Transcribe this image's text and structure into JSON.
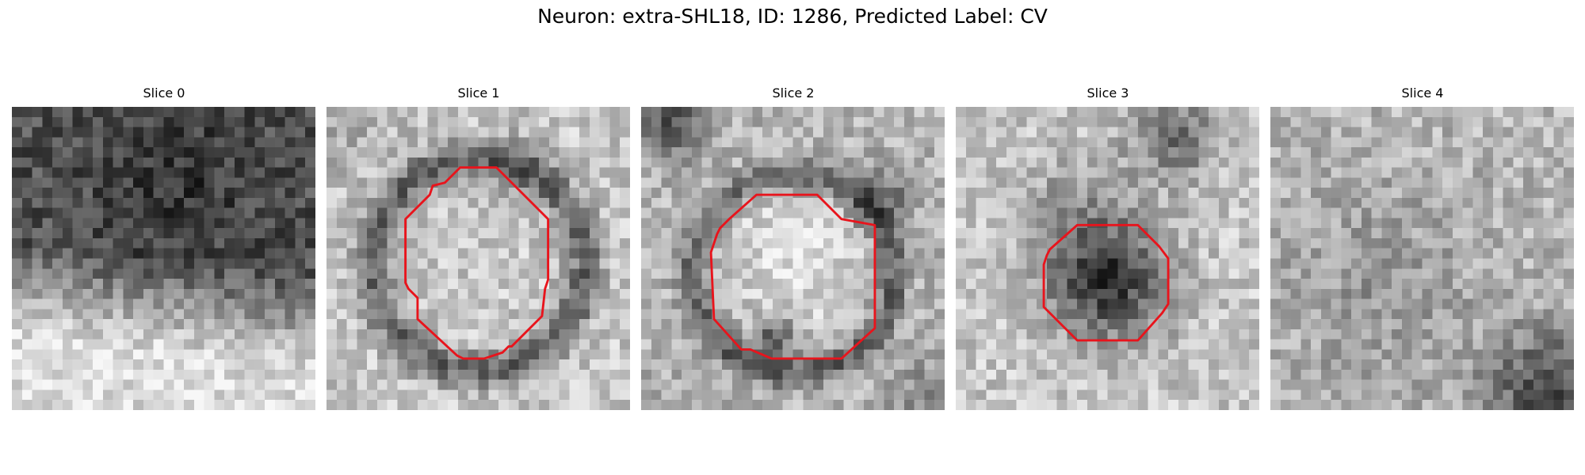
{
  "figure": {
    "title": "Neuron: extra-SHL18, ID: 1286, Predicted Label: CV"
  },
  "contour_color": "#e8141c",
  "panels": [
    {
      "title": "Slice 0",
      "seed": 11,
      "base": "slice0",
      "contour": null
    },
    {
      "title": "Slice 1",
      "seed": 23,
      "base": "slice1",
      "contour": [
        [
          0.44,
          0.2
        ],
        [
          0.56,
          0.2
        ],
        [
          0.61,
          0.25
        ],
        [
          0.73,
          0.37
        ],
        [
          0.73,
          0.57
        ],
        [
          0.72,
          0.6
        ],
        [
          0.71,
          0.69
        ],
        [
          0.61,
          0.79
        ],
        [
          0.6,
          0.79
        ],
        [
          0.58,
          0.81
        ],
        [
          0.52,
          0.83
        ],
        [
          0.45,
          0.83
        ],
        [
          0.43,
          0.82
        ],
        [
          0.3,
          0.7
        ],
        [
          0.3,
          0.63
        ],
        [
          0.27,
          0.6
        ],
        [
          0.26,
          0.58
        ],
        [
          0.26,
          0.37
        ],
        [
          0.34,
          0.29
        ],
        [
          0.35,
          0.26
        ],
        [
          0.39,
          0.25
        ]
      ]
    },
    {
      "title": "Slice 2",
      "seed": 37,
      "base": "slice2",
      "contour": [
        [
          0.38,
          0.29
        ],
        [
          0.58,
          0.29
        ],
        [
          0.66,
          0.37
        ],
        [
          0.77,
          0.39
        ],
        [
          0.77,
          0.73
        ],
        [
          0.66,
          0.83
        ],
        [
          0.43,
          0.83
        ],
        [
          0.36,
          0.8
        ],
        [
          0.33,
          0.8
        ],
        [
          0.24,
          0.7
        ],
        [
          0.23,
          0.48
        ],
        [
          0.25,
          0.42
        ],
        [
          0.26,
          0.4
        ],
        [
          0.29,
          0.37
        ]
      ]
    },
    {
      "title": "Slice 3",
      "seed": 53,
      "base": "slice3",
      "contour": [
        [
          0.4,
          0.39
        ],
        [
          0.6,
          0.39
        ],
        [
          0.67,
          0.46
        ],
        [
          0.7,
          0.5
        ],
        [
          0.7,
          0.65
        ],
        [
          0.68,
          0.68
        ],
        [
          0.6,
          0.77
        ],
        [
          0.4,
          0.77
        ],
        [
          0.29,
          0.66
        ],
        [
          0.29,
          0.52
        ],
        [
          0.3,
          0.49
        ],
        [
          0.31,
          0.47
        ]
      ]
    },
    {
      "title": "Slice 4",
      "seed": 71,
      "base": "slice4",
      "contour": null
    }
  ]
}
